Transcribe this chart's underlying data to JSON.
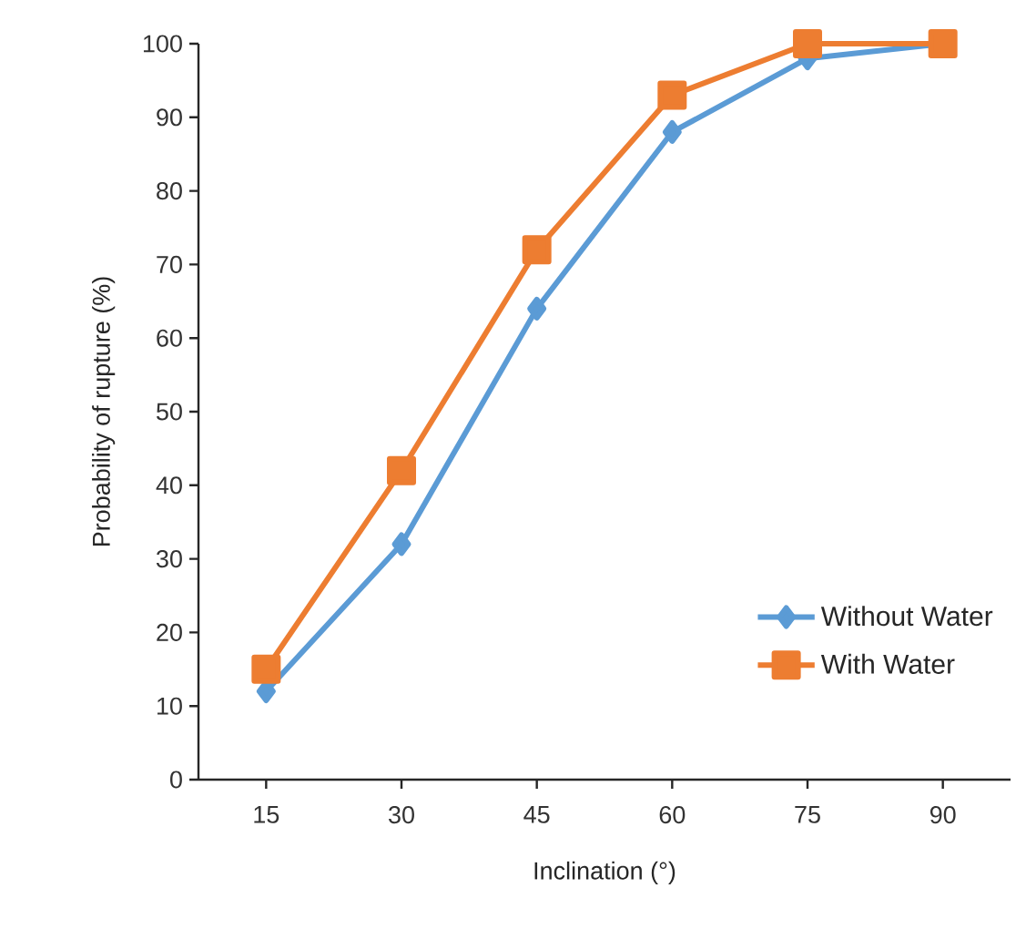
{
  "chart_data": {
    "type": "line",
    "xlabel": "Inclination (°)",
    "ylabel": "Probability of rupture (%)",
    "categories": [
      "15",
      "30",
      "45",
      "60",
      "75",
      "90"
    ],
    "series": [
      {
        "name": "Without Water",
        "color": "#5b9bd5",
        "marker": "diamond",
        "values": [
          12,
          32,
          64,
          88,
          98,
          100
        ]
      },
      {
        "name": "With Water",
        "color": "#ed7d31",
        "marker": "square",
        "values": [
          15,
          42,
          72,
          93,
          100,
          100
        ]
      }
    ],
    "ylim": [
      0,
      100
    ],
    "yticks": [
      0,
      10,
      20,
      30,
      40,
      50,
      60,
      70,
      80,
      90,
      100
    ],
    "legend": "bottom right",
    "grid": false,
    "line_style": "solid"
  }
}
